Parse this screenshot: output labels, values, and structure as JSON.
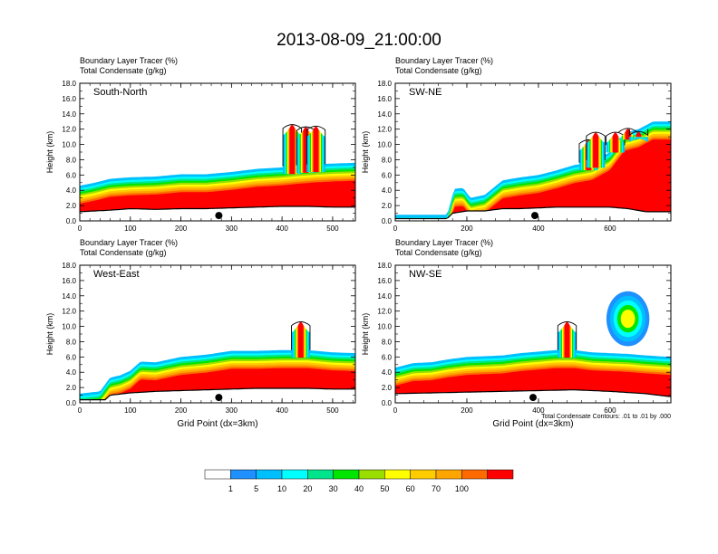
{
  "title": "2013-08-09_21:00:00",
  "chart_data": [
    {
      "type": "heatmap",
      "label": "South-North",
      "field_label": "Boundary Layer Tracer",
      "field_unit": "(%)",
      "contour_label": "Total Condensate",
      "contour_unit": "(g/kg)",
      "ylabel": "Height (km)",
      "ylim": [
        0,
        18
      ],
      "xlim": [
        0,
        545
      ],
      "xticks": [
        0,
        100,
        200,
        300,
        400,
        500
      ],
      "marker_x": 275,
      "terrain": [
        [
          0,
          1.2
        ],
        [
          30,
          1.3
        ],
        [
          60,
          1.4
        ],
        [
          100,
          1.6
        ],
        [
          150,
          1.5
        ],
        [
          200,
          1.6
        ],
        [
          250,
          1.6
        ],
        [
          300,
          1.7
        ],
        [
          350,
          1.8
        ],
        [
          400,
          1.9
        ],
        [
          450,
          1.9
        ],
        [
          500,
          1.8
        ],
        [
          545,
          1.8
        ]
      ],
      "pbl_top": [
        [
          0,
          4.6
        ],
        [
          30,
          5.0
        ],
        [
          60,
          5.5
        ],
        [
          100,
          5.7
        ],
        [
          150,
          5.8
        ],
        [
          200,
          6.1
        ],
        [
          250,
          6.1
        ],
        [
          300,
          6.4
        ],
        [
          350,
          6.8
        ],
        [
          400,
          7.0
        ],
        [
          430,
          7.2
        ],
        [
          470,
          7.4
        ],
        [
          500,
          7.5
        ],
        [
          545,
          7.6
        ]
      ],
      "plumes": [
        [
          420,
          12.5
        ],
        [
          447,
          12.2
        ],
        [
          467,
          12.3
        ]
      ],
      "xlabel": ""
    },
    {
      "type": "heatmap",
      "label": "SW-NE",
      "field_label": "Boundary Layer Tracer",
      "field_unit": "(%)",
      "contour_label": "Total Condensate",
      "contour_unit": "(g/kg)",
      "ylabel": "Height (km)",
      "ylim": [
        0,
        18
      ],
      "xlim": [
        0,
        770
      ],
      "xticks": [
        0,
        200,
        400,
        600
      ],
      "marker_x": 390,
      "terrain": [
        [
          0,
          0.3
        ],
        [
          100,
          0.3
        ],
        [
          145,
          0.3
        ],
        [
          160,
          1.0
        ],
        [
          200,
          1.3
        ],
        [
          250,
          1.3
        ],
        [
          300,
          1.6
        ],
        [
          350,
          1.6
        ],
        [
          400,
          1.7
        ],
        [
          450,
          1.8
        ],
        [
          500,
          1.8
        ],
        [
          550,
          1.8
        ],
        [
          600,
          1.8
        ],
        [
          650,
          1.6
        ],
        [
          700,
          1.2
        ],
        [
          770,
          1.2
        ]
      ],
      "pbl_top": [
        [
          0,
          0.8
        ],
        [
          100,
          0.8
        ],
        [
          145,
          0.8
        ],
        [
          165,
          4.2
        ],
        [
          190,
          4.3
        ],
        [
          210,
          3.0
        ],
        [
          250,
          3.4
        ],
        [
          300,
          5.3
        ],
        [
          350,
          5.7
        ],
        [
          400,
          6.0
        ],
        [
          450,
          6.6
        ],
        [
          500,
          7.3
        ],
        [
          550,
          7.7
        ],
        [
          600,
          9.0
        ],
        [
          640,
          11.5
        ],
        [
          680,
          12.0
        ],
        [
          720,
          13.0
        ],
        [
          770,
          13.0
        ]
      ],
      "plumes": [
        [
          540,
          10.5
        ],
        [
          560,
          11.5
        ],
        [
          615,
          11.5
        ],
        [
          650,
          12.0
        ],
        [
          680,
          11.6
        ]
      ],
      "xlabel": ""
    },
    {
      "type": "heatmap",
      "label": "West-East",
      "field_label": "Boundary Layer Tracer",
      "field_unit": "(%)",
      "contour_label": "Total Condensate",
      "contour_unit": "(g/kg)",
      "ylabel": "Height (km)",
      "ylim": [
        0,
        18
      ],
      "xlim": [
        0,
        545
      ],
      "xticks": [
        0,
        100,
        200,
        300,
        400,
        500
      ],
      "marker_x": 275,
      "terrain": [
        [
          0,
          0.4
        ],
        [
          50,
          0.4
        ],
        [
          60,
          1.0
        ],
        [
          100,
          1.3
        ],
        [
          150,
          1.5
        ],
        [
          200,
          1.6
        ],
        [
          250,
          1.7
        ],
        [
          300,
          1.8
        ],
        [
          350,
          1.9
        ],
        [
          400,
          1.9
        ],
        [
          450,
          1.9
        ],
        [
          500,
          1.8
        ],
        [
          545,
          1.8
        ]
      ],
      "pbl_top": [
        [
          0,
          1.2
        ],
        [
          40,
          1.5
        ],
        [
          60,
          3.3
        ],
        [
          80,
          3.6
        ],
        [
          100,
          4.2
        ],
        [
          120,
          5.4
        ],
        [
          150,
          5.3
        ],
        [
          200,
          6.0
        ],
        [
          250,
          6.3
        ],
        [
          300,
          6.8
        ],
        [
          350,
          6.8
        ],
        [
          400,
          6.9
        ],
        [
          450,
          6.9
        ],
        [
          500,
          6.6
        ],
        [
          545,
          6.5
        ]
      ],
      "plumes": [
        [
          437,
          10.5
        ]
      ],
      "xlabel": "Grid Point (dx=3km)"
    },
    {
      "type": "heatmap",
      "label": "NW-SE",
      "field_label": "Boundary Layer Tracer",
      "field_unit": "(%)",
      "contour_label": "Total Condensate",
      "contour_unit": "(g/kg)",
      "ylabel": "Height (km)",
      "ylim": [
        0,
        18
      ],
      "xlim": [
        0,
        770
      ],
      "xticks": [
        0,
        200,
        400,
        600
      ],
      "marker_x": 385,
      "terrain": [
        [
          0,
          1.2
        ],
        [
          100,
          1.3
        ],
        [
          200,
          1.4
        ],
        [
          300,
          1.5
        ],
        [
          400,
          1.6
        ],
        [
          500,
          1.7
        ],
        [
          600,
          1.5
        ],
        [
          700,
          1.2
        ],
        [
          770,
          0.8
        ]
      ],
      "pbl_top": [
        [
          0,
          4.6
        ],
        [
          50,
          5.2
        ],
        [
          100,
          5.3
        ],
        [
          150,
          5.7
        ],
        [
          200,
          6.0
        ],
        [
          250,
          6.1
        ],
        [
          300,
          6.2
        ],
        [
          350,
          6.5
        ],
        [
          400,
          6.7
        ],
        [
          450,
          6.9
        ],
        [
          500,
          6.9
        ],
        [
          550,
          6.6
        ],
        [
          600,
          6.5
        ],
        [
          650,
          6.4
        ],
        [
          700,
          6.2
        ],
        [
          770,
          6.0
        ]
      ],
      "plumes": [
        [
          480,
          10.5
        ]
      ],
      "blob": [
        650,
        11.0
      ],
      "xlabel": "Grid Point (dx=3km)",
      "note": "Total Condensate Contours: .01 to .01 by .000"
    }
  ],
  "colorbar": {
    "labels": [
      "1",
      "5",
      "10",
      "20",
      "30",
      "40",
      "50",
      "60",
      "70",
      "100"
    ],
    "colors": [
      "#ffffff",
      "#1e90ff",
      "#00bfff",
      "#00ffff",
      "#00e58c",
      "#00e600",
      "#9ade00",
      "#ffff00",
      "#ffcc00",
      "#ffa500",
      "#ff6a00",
      "#ff0000"
    ]
  }
}
